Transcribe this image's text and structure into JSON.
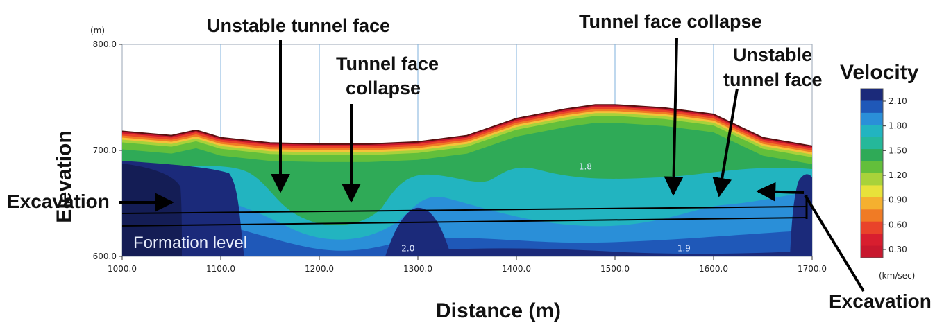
{
  "chart_data": {
    "type": "heatmap",
    "title": "",
    "xlabel": "Distance (m)",
    "ylabel": "Elevation",
    "y_unit": "(m)",
    "xlim": [
      1000,
      1700
    ],
    "ylim": [
      600,
      800
    ],
    "x_ticks": [
      "1000.0",
      "1100.0",
      "1200.0",
      "1300.0",
      "1400.0",
      "1500.0",
      "1600.0",
      "1700.0"
    ],
    "y_ticks": [
      "600.0",
      "700.0",
      "800.0"
    ],
    "grid": "vertical",
    "surface_profile": {
      "x": [
        1000,
        1050,
        1075,
        1100,
        1150,
        1200,
        1250,
        1300,
        1350,
        1400,
        1450,
        1480,
        1500,
        1550,
        1600,
        1650,
        1700
      ],
      "elevation": [
        718,
        714,
        719,
        712,
        707,
        706,
        706,
        708,
        714,
        730,
        739,
        743,
        743,
        740,
        734,
        712,
        704
      ]
    },
    "in_plot_labels": [
      {
        "text": "1.8",
        "x": 1470,
        "y": 682
      },
      {
        "text": "2.0",
        "x": 1290,
        "y": 605
      },
      {
        "text": "1.9",
        "x": 1570,
        "y": 605
      }
    ],
    "formation_level_label": "Formation level",
    "colorbar": {
      "title": "Velocity",
      "unit": "(km/sec)",
      "ticks": [
        "2.10",
        "1.80",
        "1.50",
        "1.20",
        "0.90",
        "0.60",
        "0.30"
      ],
      "colors": [
        "#1b2a7a",
        "#1f58b8",
        "#2a8fd8",
        "#22b4c0",
        "#25b89a",
        "#2faa57",
        "#63bf3b",
        "#a8d23a",
        "#e8e23a",
        "#f5b02f",
        "#f07b25",
        "#e9432a",
        "#d81e2f",
        "#c8182e"
      ]
    },
    "annotations": [
      {
        "text": "Unstable tunnel face",
        "target_x": 1155,
        "target_y": 655
      },
      {
        "text": "Tunnel face collapse",
        "target_x": 1230,
        "target_y": 640
      },
      {
        "text": "Tunnel face collapse",
        "target_x": 1555,
        "target_y": 655
      },
      {
        "text": "Unstable tunnel face",
        "target_x": 1605,
        "target_y": 655
      },
      {
        "text": "Excavation",
        "target_x": 1040,
        "target_y": 645
      },
      {
        "text": "Excavation",
        "target_x": 1590,
        "target_y": 660
      }
    ]
  },
  "texts": {
    "ann_unstable_left": "Unstable tunnel face",
    "ann_collapse_mid_1": "Tunnel face",
    "ann_collapse_mid_2": "collapse",
    "ann_collapse_right": "Tunnel face collapse",
    "ann_unstable_right_1": "Unstable",
    "ann_unstable_right_2": "tunnel face",
    "ann_excavation_left": "Excavation",
    "ann_excavation_right": "Excavation"
  }
}
